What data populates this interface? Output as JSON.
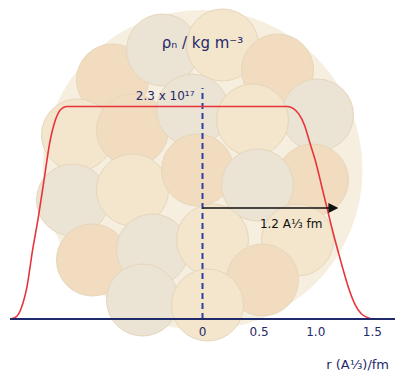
{
  "chart_data": {
    "type": "line",
    "ylabel": "ρₙ / kg m⁻³",
    "xlabel": "r (A⅓)/fm",
    "x": [
      -1.7,
      -1.65,
      -1.6,
      -1.55,
      -1.5,
      -1.45,
      -1.4,
      -1.35,
      -1.3,
      -1.25,
      -1.2,
      -1.0,
      0,
      0.5,
      0.75,
      0.8,
      0.85,
      0.9,
      0.95,
      1.0,
      1.05,
      1.1,
      1.15,
      1.2,
      1.25,
      1.3,
      1.35,
      1.4,
      1.45,
      1.5,
      1.7
    ],
    "values": [
      0,
      2000000000000000.0,
      1.2e+16,
      3.5e+16,
      7.5e+16,
      1.1e+17,
      1.5e+17,
      1.9e+17,
      2.15e+17,
      2.27e+17,
      2.3e+17,
      2.3e+17,
      2.3e+17,
      2.3e+17,
      2.3e+17,
      2.28e+17,
      2.22e+17,
      2.1e+17,
      1.9e+17,
      1.7e+17,
      1.45e+17,
      1.2e+17,
      9.5e+16,
      7.2e+16,
      5e+16,
      3e+16,
      1.5e+16,
      6000000000000000.0,
      2000000000000000.0,
      0,
      0
    ],
    "color": "#e8333a",
    "xlim": [
      -1.7,
      1.7
    ],
    "xticks": [
      0,
      0.5,
      {
        "value": 1,
        "label": "1.0"
      },
      1.5
    ],
    "ylim": [
      0,
      2.5e+17
    ],
    "yticks": [
      {
        "value": 2.3e+17,
        "label": "2.3 x 10¹⁷"
      }
    ],
    "annotations": [
      {
        "text": "1.2 A⅓ fm",
        "x": [
          0,
          1.2
        ],
        "y": 1.2e+17
      }
    ]
  }
}
